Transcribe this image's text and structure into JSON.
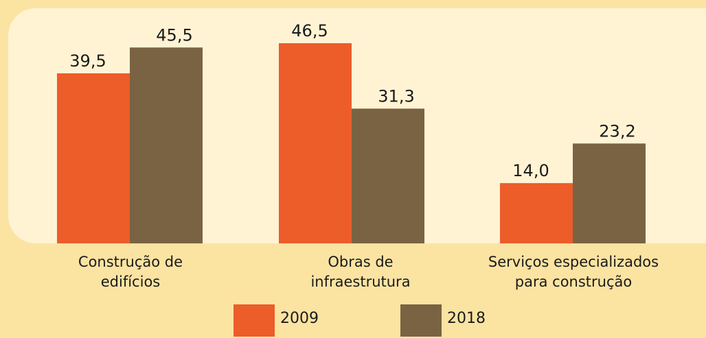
{
  "chart_data": {
    "type": "bar",
    "categories": [
      "Construção de edifícios",
      "Obras de infraestrutura",
      "Serviços especializados para construção"
    ],
    "series": [
      {
        "name": "2009",
        "color": "#ec5d2a",
        "values": [
          39.5,
          46.5,
          14.0
        ],
        "value_labels": [
          "39,5",
          "46,5",
          "14,0"
        ]
      },
      {
        "name": "2018",
        "color": "#7a6342",
        "values": [
          45.5,
          31.3,
          23.2
        ],
        "value_labels": [
          "45,5",
          "31,3",
          "23,2"
        ]
      }
    ]
  }
}
